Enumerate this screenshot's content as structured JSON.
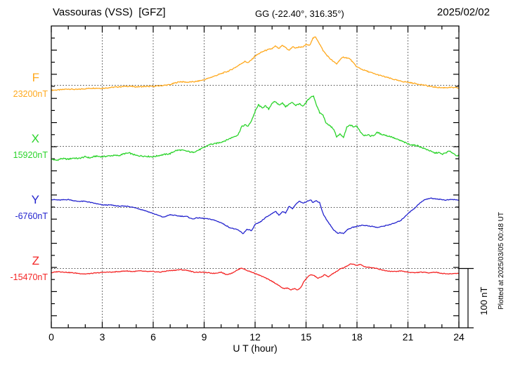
{
  "header": {
    "station_title": "Vassouras (VSS)  [GFZ]",
    "coords": "GG (-22.40°, 316.35°)",
    "date": "2025/02/02"
  },
  "chart_data": {
    "type": "line",
    "title": "Vassouras (VSS)  [GFZ]",
    "subtitle": "GG (-22.40°, 316.35°)",
    "date": "2025/02/02",
    "xlabel": "U T (hour)",
    "ylabel": "",
    "x_range": [
      0,
      24
    ],
    "x_ticks": [
      0,
      3,
      6,
      9,
      12,
      15,
      18,
      21,
      24
    ],
    "x_minor_tick_hours": 1,
    "grid": "dotted vertical lines every 3 h, dotted horizontal baseline per trace",
    "y_division_nT": 20,
    "y_scale": "100 nT per 5 divisions",
    "scale_bar_label": "100 nT",
    "footer_note": "Plotted at 2025/03/05 00:48 UT",
    "legend_position": "left margin, one label per trace baseline",
    "series": [
      {
        "name": "F",
        "baseline_label": "23200nT",
        "baseline_nT": 23200,
        "color": "#FFA91E",
        "noise_nT": 0.9,
        "points": [
          [
            0,
            -8
          ],
          [
            0.5,
            -7.5
          ],
          [
            1,
            -6
          ],
          [
            1.5,
            -7
          ],
          [
            2,
            -5.5
          ],
          [
            2.5,
            -4.5
          ],
          [
            3,
            -5
          ],
          [
            3.5,
            -3.5
          ],
          [
            4,
            -2.5
          ],
          [
            4.5,
            -1.5
          ],
          [
            5,
            -2.5
          ],
          [
            5.5,
            -2
          ],
          [
            6,
            -1.8
          ],
          [
            6.5,
            -0.5
          ],
          [
            7,
            1
          ],
          [
            7.3,
            4
          ],
          [
            7.6,
            6
          ],
          [
            8,
            5
          ],
          [
            8.5,
            6
          ],
          [
            9,
            9
          ],
          [
            9.5,
            14
          ],
          [
            10,
            19
          ],
          [
            10.5,
            24
          ],
          [
            11,
            32
          ],
          [
            11.2,
            36
          ],
          [
            11.4,
            39
          ],
          [
            11.6,
            37
          ],
          [
            11.8,
            42
          ],
          [
            12,
            48
          ],
          [
            12.3,
            53
          ],
          [
            12.6,
            57
          ],
          [
            13,
            60
          ],
          [
            13.2,
            64
          ],
          [
            13.4,
            60
          ],
          [
            13.6,
            65
          ],
          [
            13.8,
            62
          ],
          [
            14,
            57
          ],
          [
            14.2,
            63
          ],
          [
            14.4,
            61
          ],
          [
            14.6,
            63
          ],
          [
            14.8,
            62
          ],
          [
            15,
            67
          ],
          [
            15.2,
            65
          ],
          [
            15.4,
            77
          ],
          [
            15.55,
            79
          ],
          [
            15.7,
            73
          ],
          [
            16,
            57
          ],
          [
            16.2,
            50
          ],
          [
            16.4,
            44
          ],
          [
            16.6,
            39
          ],
          [
            16.8,
            35
          ],
          [
            17,
            42
          ],
          [
            17.2,
            46
          ],
          [
            17.4,
            45
          ],
          [
            17.6,
            43
          ],
          [
            17.8,
            36
          ],
          [
            18,
            30
          ],
          [
            18.3,
            26
          ],
          [
            18.6,
            23
          ],
          [
            19,
            19
          ],
          [
            19.5,
            15
          ],
          [
            20,
            11
          ],
          [
            20.5,
            7
          ],
          [
            21,
            5
          ],
          [
            21.5,
            2.5
          ],
          [
            22,
            0
          ],
          [
            22.3,
            -2
          ],
          [
            22.6,
            -3
          ],
          [
            23,
            -4
          ],
          [
            23.5,
            -3.5
          ],
          [
            24,
            -4.5
          ]
        ]
      },
      {
        "name": "X",
        "baseline_label": "15920nT",
        "baseline_nT": 15920,
        "color": "#2BD42B",
        "noise_nT": 1.1,
        "points": [
          [
            0,
            -21
          ],
          [
            0.3,
            -23
          ],
          [
            0.6,
            -20
          ],
          [
            1,
            -21
          ],
          [
            1.3,
            -19
          ],
          [
            1.6,
            -20
          ],
          [
            2,
            -17
          ],
          [
            2.3,
            -19
          ],
          [
            2.6,
            -16
          ],
          [
            3,
            -17
          ],
          [
            3.3,
            -16
          ],
          [
            3.6,
            -15
          ],
          [
            4,
            -15
          ],
          [
            4.3,
            -12
          ],
          [
            4.6,
            -11
          ],
          [
            5,
            -15
          ],
          [
            5.5,
            -16
          ],
          [
            6,
            -17
          ],
          [
            6.5,
            -14
          ],
          [
            7,
            -12
          ],
          [
            7.3,
            -7
          ],
          [
            7.6,
            -6
          ],
          [
            8,
            -8
          ],
          [
            8.3,
            -10
          ],
          [
            8.6,
            -7
          ],
          [
            9,
            -2
          ],
          [
            9.3,
            3
          ],
          [
            9.6,
            4
          ],
          [
            10,
            7
          ],
          [
            10.3,
            10
          ],
          [
            10.6,
            14
          ],
          [
            11,
            19
          ],
          [
            11.2,
            32
          ],
          [
            11.4,
            35
          ],
          [
            11.6,
            33
          ],
          [
            11.8,
            43
          ],
          [
            12,
            57
          ],
          [
            12.2,
            68
          ],
          [
            12.4,
            63
          ],
          [
            12.6,
            66
          ],
          [
            12.8,
            61
          ],
          [
            13,
            71
          ],
          [
            13.2,
            73
          ],
          [
            13.4,
            68
          ],
          [
            13.6,
            71
          ],
          [
            13.8,
            65
          ],
          [
            14,
            69
          ],
          [
            14.2,
            72
          ],
          [
            14.4,
            67
          ],
          [
            14.6,
            70
          ],
          [
            14.8,
            65
          ],
          [
            15,
            71
          ],
          [
            15.1,
            76
          ],
          [
            15.3,
            81
          ],
          [
            15.45,
            82
          ],
          [
            15.6,
            69
          ],
          [
            15.8,
            55
          ],
          [
            16,
            51
          ],
          [
            16.2,
            37
          ],
          [
            16.4,
            34
          ],
          [
            16.6,
            29
          ],
          [
            16.8,
            16
          ],
          [
            17,
            20
          ],
          [
            17.2,
            14
          ],
          [
            17.4,
            31
          ],
          [
            17.6,
            35
          ],
          [
            17.8,
            32
          ],
          [
            18,
            33
          ],
          [
            18.2,
            24
          ],
          [
            18.4,
            18
          ],
          [
            18.6,
            19
          ],
          [
            18.8,
            17
          ],
          [
            19,
            18
          ],
          [
            19.2,
            23
          ],
          [
            19.4,
            20
          ],
          [
            19.6,
            19
          ],
          [
            19.8,
            17
          ],
          [
            20,
            16
          ],
          [
            20.3,
            12
          ],
          [
            20.6,
            9
          ],
          [
            21,
            4
          ],
          [
            21.3,
            2
          ],
          [
            21.6,
            1
          ],
          [
            21.8,
            -2
          ],
          [
            22,
            -4
          ],
          [
            22.2,
            -6
          ],
          [
            22.4,
            -9
          ],
          [
            22.6,
            -11
          ],
          [
            22.8,
            -10
          ],
          [
            23,
            -13
          ],
          [
            23.2,
            -11
          ],
          [
            23.4,
            -8
          ],
          [
            23.6,
            -10
          ],
          [
            23.8,
            -14
          ],
          [
            24,
            -16
          ]
        ]
      },
      {
        "name": "Y",
        "baseline_label": "-6760nT",
        "baseline_nT": -6760,
        "color": "#2424CE",
        "noise_nT": 0.6,
        "points": [
          [
            0,
            13
          ],
          [
            0.5,
            12
          ],
          [
            1,
            13
          ],
          [
            1.5,
            10
          ],
          [
            2,
            10
          ],
          [
            2.5,
            7
          ],
          [
            3,
            4
          ],
          [
            3.5,
            4
          ],
          [
            4,
            2
          ],
          [
            4.5,
            2
          ],
          [
            5,
            -1
          ],
          [
            5.5,
            -5
          ],
          [
            6,
            -10
          ],
          [
            6.3,
            -13
          ],
          [
            6.6,
            -16
          ],
          [
            7,
            -12
          ],
          [
            7.5,
            -14
          ],
          [
            8,
            -15
          ],
          [
            8.3,
            -19
          ],
          [
            8.6,
            -17
          ],
          [
            9,
            -18
          ],
          [
            9.5,
            -20
          ],
          [
            10,
            -25
          ],
          [
            10.5,
            -33
          ],
          [
            11,
            -37
          ],
          [
            11.3,
            -43
          ],
          [
            11.5,
            -36
          ],
          [
            11.8,
            -38
          ],
          [
            12,
            -28
          ],
          [
            12.3,
            -24
          ],
          [
            12.6,
            -17
          ],
          [
            13,
            -10
          ],
          [
            13.2,
            -6
          ],
          [
            13.4,
            -13
          ],
          [
            13.6,
            -7
          ],
          [
            13.8,
            -9
          ],
          [
            14,
            2
          ],
          [
            14.2,
            -2
          ],
          [
            14.4,
            5
          ],
          [
            14.6,
            10
          ],
          [
            14.8,
            7
          ],
          [
            15,
            9
          ],
          [
            15.27,
            13
          ],
          [
            15.4,
            8
          ],
          [
            15.6,
            11
          ],
          [
            15.8,
            8
          ],
          [
            16,
            -10
          ],
          [
            16.2,
            -20
          ],
          [
            16.4,
            -28
          ],
          [
            16.6,
            -36
          ],
          [
            16.9,
            -43
          ],
          [
            17,
            -41
          ],
          [
            17.2,
            -43
          ],
          [
            17.4,
            -37
          ],
          [
            17.7,
            -33
          ],
          [
            18,
            -31
          ],
          [
            18.3,
            -29
          ],
          [
            18.6,
            -30
          ],
          [
            18.9,
            -31
          ],
          [
            19.2,
            -33
          ],
          [
            19.5,
            -31
          ],
          [
            19.8,
            -29
          ],
          [
            20.2,
            -26
          ],
          [
            20.6,
            -21
          ],
          [
            21,
            -10
          ],
          [
            21.4,
            -1
          ],
          [
            21.7,
            7
          ],
          [
            22,
            13
          ],
          [
            22.3,
            15
          ],
          [
            22.7,
            14
          ],
          [
            23.2,
            12
          ],
          [
            23.6,
            13
          ],
          [
            24,
            12
          ]
        ]
      },
      {
        "name": "Z",
        "baseline_label": "-15470nT",
        "baseline_nT": -15470,
        "color": "#F42525",
        "noise_nT": 0.6,
        "points": [
          [
            0,
            -7
          ],
          [
            0.4,
            -5
          ],
          [
            0.8,
            -6
          ],
          [
            1.2,
            -7
          ],
          [
            1.6,
            -8
          ],
          [
            2,
            -9
          ],
          [
            2.4,
            -8
          ],
          [
            2.8,
            -7
          ],
          [
            3.2,
            -6
          ],
          [
            3.6,
            -6
          ],
          [
            4,
            -5
          ],
          [
            4.4,
            -4
          ],
          [
            4.8,
            -5
          ],
          [
            5.2,
            -4
          ],
          [
            5.6,
            -5
          ],
          [
            6,
            -5
          ],
          [
            6.4,
            -6
          ],
          [
            6.8,
            -4
          ],
          [
            7.2,
            -3
          ],
          [
            7.6,
            -2
          ],
          [
            8,
            -3
          ],
          [
            8.4,
            -6
          ],
          [
            8.8,
            -6
          ],
          [
            9.2,
            -7
          ],
          [
            9.6,
            -8
          ],
          [
            10,
            -6
          ],
          [
            10.3,
            -10
          ],
          [
            10.6,
            -8
          ],
          [
            11,
            -2
          ],
          [
            11.2,
            1
          ],
          [
            11.5,
            -3
          ],
          [
            12,
            -8
          ],
          [
            12.5,
            -14
          ],
          [
            13,
            -21
          ],
          [
            13.3,
            -26
          ],
          [
            13.5,
            -30
          ],
          [
            13.7,
            -33
          ],
          [
            13.9,
            -32
          ],
          [
            14.1,
            -35
          ],
          [
            14.3,
            -33
          ],
          [
            14.5,
            -35
          ],
          [
            14.7,
            -31
          ],
          [
            14.9,
            -20
          ],
          [
            15.1,
            -14
          ],
          [
            15.3,
            -10
          ],
          [
            15.5,
            -12
          ],
          [
            15.7,
            -16
          ],
          [
            15.9,
            -14
          ],
          [
            16.1,
            -10
          ],
          [
            16.3,
            -14
          ],
          [
            16.6,
            -8
          ],
          [
            16.8,
            -5
          ],
          [
            17,
            -1
          ],
          [
            17.2,
            1
          ],
          [
            17.4,
            4
          ],
          [
            17.6,
            7
          ],
          [
            17.8,
            7
          ],
          [
            18,
            5
          ],
          [
            18.2,
            7
          ],
          [
            18.4,
            3
          ],
          [
            18.7,
            2
          ],
          [
            19,
            1
          ],
          [
            19.2,
            0
          ],
          [
            19.4,
            -2
          ],
          [
            19.8,
            -4
          ],
          [
            20.2,
            -5
          ],
          [
            20.6,
            -4
          ],
          [
            21,
            -6
          ],
          [
            21.4,
            -7
          ],
          [
            21.8,
            -6
          ],
          [
            22.2,
            -7
          ],
          [
            22.6,
            -6
          ],
          [
            23,
            -8
          ],
          [
            23.4,
            -9
          ],
          [
            23.8,
            -8
          ],
          [
            24,
            -8
          ]
        ]
      }
    ]
  }
}
